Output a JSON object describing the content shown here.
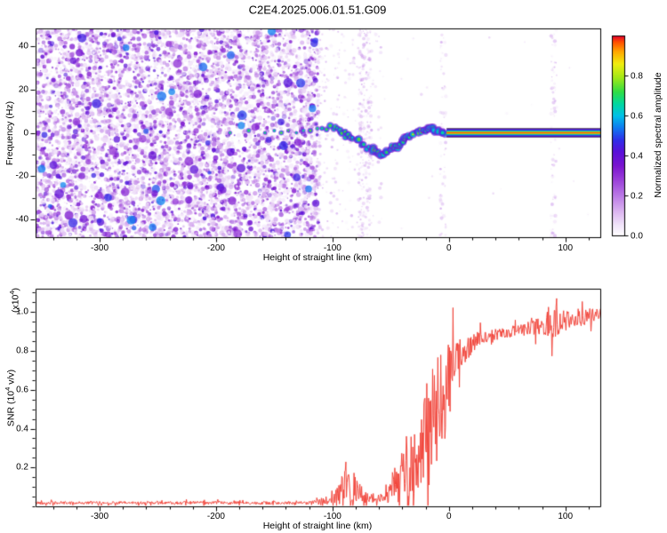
{
  "title": "C2E4.2025.006.01.51.G09",
  "colors": {
    "background": "#ffffff",
    "axis": "#000000"
  },
  "chart_data": [
    {
      "type": "heatmap",
      "name": "frequency-spectrogram",
      "xlabel": "Height of straight line (km)",
      "ylabel": "Frequency (Hz)",
      "xlim": [
        -355,
        130
      ],
      "ylim": [
        -48,
        48
      ],
      "x_ticks": [
        -300,
        -200,
        -100,
        0,
        100
      ],
      "y_ticks": [
        -40,
        -20,
        0,
        20,
        40
      ],
      "x_minor_step": 20,
      "y_minor_step": 10,
      "seed": 7,
      "noise_region": {
        "x_min": -355,
        "x_max": -113,
        "density": 6500,
        "clumps": 90
      },
      "sparse_noise": {
        "x_min": -113,
        "x_max": -58,
        "count": 260
      },
      "faint_streaks": [
        {
          "x": -75,
          "count": 130
        },
        {
          "x": -69,
          "count": 100
        },
        {
          "x": -5,
          "count": 60
        },
        {
          "x": 90,
          "count": 70
        }
      ],
      "pre_trace_dots": [
        [
          -188,
          0
        ],
        [
          -172,
          1
        ],
        [
          -158,
          0
        ],
        [
          -150,
          1
        ],
        [
          -144,
          0
        ],
        [
          -138,
          1
        ],
        [
          -131,
          0
        ],
        [
          -125,
          1
        ],
        [
          -119,
          1
        ],
        [
          -113,
          2
        ],
        [
          -109,
          2
        ]
      ],
      "signal_trace": [
        [
          -105,
          2.5
        ],
        [
          -100,
          2
        ],
        [
          -96,
          1.5
        ],
        [
          -92,
          0.5
        ],
        [
          -88,
          -1
        ],
        [
          -84,
          -2
        ],
        [
          -80,
          -3
        ],
        [
          -76,
          -4.5
        ],
        [
          -72,
          -6
        ],
        [
          -68,
          -7.5
        ],
        [
          -64,
          -8.5
        ],
        [
          -60,
          -9.5
        ],
        [
          -57,
          -10
        ],
        [
          -54,
          -9
        ],
        [
          -51,
          -7.5
        ],
        [
          -48,
          -6.5
        ],
        [
          -45,
          -6
        ],
        [
          -42,
          -5
        ],
        [
          -39,
          -4
        ],
        [
          -36,
          -2.5
        ],
        [
          -33,
          -1.5
        ],
        [
          -30,
          -0.5
        ],
        [
          -27,
          0.5
        ],
        [
          -24,
          1
        ],
        [
          -21,
          1
        ],
        [
          -18,
          1.5
        ],
        [
          -15,
          2
        ],
        [
          -12,
          1
        ],
        [
          -9,
          0.5
        ],
        [
          -6,
          0.5
        ],
        [
          -3,
          0
        ]
      ],
      "flat_line": {
        "x_start": -2,
        "x_end": 130,
        "freq": 0
      },
      "colorbar": {
        "label": "Normalized spectral amplitude",
        "range": [
          0,
          1
        ],
        "ticks": [
          0.0,
          0.2,
          0.4,
          0.6,
          0.8
        ],
        "stops": [
          [
            0.0,
            "#ffffff"
          ],
          [
            0.05,
            "#f2e6fa"
          ],
          [
            0.12,
            "#dcb6f0"
          ],
          [
            0.2,
            "#bb7ae6"
          ],
          [
            0.28,
            "#9a3fd9"
          ],
          [
            0.35,
            "#7a14cf"
          ],
          [
            0.42,
            "#5a10d8"
          ],
          [
            0.48,
            "#2f2fe8"
          ],
          [
            0.54,
            "#0f7af0"
          ],
          [
            0.6,
            "#00c0e8"
          ],
          [
            0.66,
            "#00d8a0"
          ],
          [
            0.72,
            "#30dd45"
          ],
          [
            0.79,
            "#a0e818"
          ],
          [
            0.86,
            "#f0ee10"
          ],
          [
            0.92,
            "#ffa800"
          ],
          [
            0.97,
            "#ff4d00"
          ],
          [
            1.0,
            "#e00030"
          ]
        ]
      }
    },
    {
      "type": "line",
      "name": "snr-profile",
      "xlabel": "Height of straight line (km)",
      "ylabel_parts": [
        "SNR (10",
        "4",
        " v/v)"
      ],
      "y_multiplier_parts": [
        "(x10",
        "4",
        ")"
      ],
      "color": "#f2463c",
      "xlim": [
        -355,
        130
      ],
      "ylim": [
        0,
        1.12
      ],
      "x_ticks": [
        -300,
        -200,
        -100,
        0,
        100
      ],
      "y_ticks": [
        0.2,
        0.4,
        0.6,
        0.8,
        1.0
      ],
      "x_minor_step": 20,
      "y_minor_step": 0.05,
      "seed": 42,
      "step_km": 0.5,
      "anchors": [
        [
          -355,
          0.018,
          0.008
        ],
        [
          -120,
          0.018,
          0.008
        ],
        [
          -100,
          0.03,
          0.03
        ],
        [
          -92,
          0.08,
          0.09
        ],
        [
          -84,
          0.1,
          0.12
        ],
        [
          -78,
          0.07,
          0.06
        ],
        [
          -70,
          0.04,
          0.03
        ],
        [
          -60,
          0.04,
          0.025
        ],
        [
          -52,
          0.06,
          0.05
        ],
        [
          -47,
          0.12,
          0.1
        ],
        [
          -43,
          0.1,
          0.08
        ],
        [
          -38,
          0.22,
          0.18
        ],
        [
          -33,
          0.2,
          0.15
        ],
        [
          -28,
          0.3,
          0.25
        ],
        [
          -24,
          0.25,
          0.2
        ],
        [
          -20,
          0.35,
          0.28
        ],
        [
          -16,
          0.4,
          0.3
        ],
        [
          -12,
          0.45,
          0.3
        ],
        [
          -8,
          0.5,
          0.28
        ],
        [
          -4,
          0.55,
          0.25
        ],
        [
          0,
          0.68,
          0.18
        ],
        [
          4,
          0.74,
          0.12
        ],
        [
          8,
          0.77,
          0.09
        ],
        [
          14,
          0.8,
          0.06
        ],
        [
          20,
          0.84,
          0.05
        ],
        [
          28,
          0.87,
          0.035
        ],
        [
          40,
          0.885,
          0.03
        ],
        [
          55,
          0.9,
          0.03
        ],
        [
          70,
          0.915,
          0.035
        ],
        [
          80,
          0.93,
          0.05
        ],
        [
          87,
          0.95,
          0.1
        ],
        [
          92,
          0.97,
          0.13
        ],
        [
          97,
          0.95,
          0.06
        ],
        [
          105,
          0.96,
          0.04
        ],
        [
          115,
          0.97,
          0.04
        ],
        [
          125,
          0.99,
          0.035
        ],
        [
          130,
          1.0,
          0.03
        ]
      ]
    }
  ]
}
